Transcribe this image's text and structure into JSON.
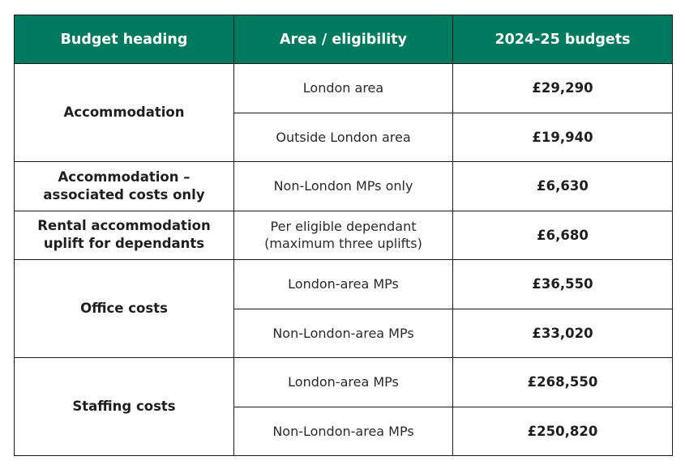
{
  "header": {
    "budget_heading": "Budget heading",
    "area_eligibility": "Area / eligibility",
    "budgets": "2024-25 budgets"
  },
  "rows": {
    "accommodation": {
      "heading": "Accommodation",
      "london_area": "London area",
      "london_amount": "£29,290",
      "outside_area": "Outside London area",
      "outside_amount": "£19,940"
    },
    "associated": {
      "heading_line1": "Accommodation –",
      "heading_line2": "associated costs only",
      "area": "Non-London MPs only",
      "amount": "£6,630"
    },
    "rental": {
      "heading_line1": "Rental accommodation",
      "heading_line2": "uplift for dependants",
      "area_line1": "Per eligible dependant",
      "area_line2": "(maximum three uplifts)",
      "amount": "£6,680"
    },
    "office": {
      "heading": "Office costs",
      "london_area": "London-area MPs",
      "london_amount": "£36,550",
      "non_london_area": "Non-London-area MPs",
      "non_london_amount": "£33,020"
    },
    "staffing": {
      "heading": "Staffing costs",
      "london_area": "London-area MPs",
      "london_amount": "£268,550",
      "non_london_area": "Non-London-area MPs",
      "non_london_amount": "£250,820"
    }
  },
  "colors": {
    "header_background": "#007a5e",
    "header_text": "#ffffff",
    "border": "#1a1a1a"
  }
}
